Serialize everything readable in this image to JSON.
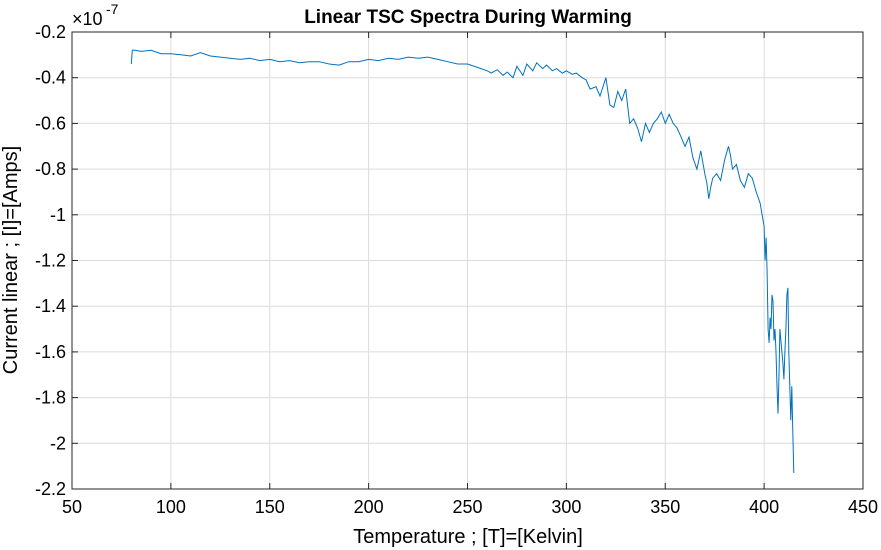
{
  "chart_data": {
    "type": "line",
    "title": "Linear TSC Spectra During Warming",
    "xlabel": "Temperature ; [T]=[Kelvin]",
    "ylabel": "Current linear ; [I]=[Amps]",
    "y_exponent_base": "×10",
    "y_exponent_power": "-7",
    "xlim": [
      50,
      450
    ],
    "ylim": [
      -2.2,
      -0.2
    ],
    "xticks": [
      50,
      100,
      150,
      200,
      250,
      300,
      350,
      400,
      450
    ],
    "xtick_labels": [
      "50",
      "100",
      "150",
      "200",
      "250",
      "300",
      "350",
      "400",
      "450"
    ],
    "yticks": [
      -2.2,
      -2,
      -1.8,
      -1.6,
      -1.4,
      -1.2,
      -1,
      -0.8,
      -0.6,
      -0.4,
      -0.2
    ],
    "ytick_labels": [
      "-2.2",
      "-2",
      "-1.8",
      "-1.6",
      "-1.4",
      "-1.2",
      "-1",
      "-0.8",
      "-0.6",
      "-0.4",
      "-0.2"
    ],
    "grid": true,
    "series": [
      {
        "color": "#0072BD",
        "x": [
          80,
          80.5,
          82,
          85,
          90,
          95,
          100,
          105,
          110,
          115,
          120,
          125,
          130,
          135,
          140,
          145,
          150,
          155,
          160,
          165,
          170,
          175,
          180,
          185,
          190,
          195,
          200,
          205,
          210,
          215,
          220,
          225,
          230,
          235,
          240,
          245,
          250,
          255,
          260,
          262,
          265,
          268,
          270,
          273,
          275,
          278,
          280,
          283,
          285,
          288,
          290,
          293,
          295,
          298,
          300,
          303,
          305,
          308,
          310,
          312,
          315,
          317,
          320,
          322,
          324,
          326,
          328,
          330,
          332,
          334,
          336,
          338,
          340,
          342,
          344,
          346,
          348,
          350,
          352,
          354,
          356,
          358,
          360,
          362,
          364,
          366,
          368,
          370,
          371,
          372,
          373,
          374,
          376,
          378,
          380,
          382,
          383,
          384,
          386,
          388,
          390,
          392,
          394,
          396,
          398,
          399,
          400,
          400.5,
          401,
          401.5,
          402,
          402.5,
          403,
          403.5,
          404,
          404.5,
          405,
          405.5,
          406,
          406.5,
          407,
          407.5,
          408,
          408.5,
          409,
          409.5,
          410,
          410.5,
          411,
          411.5,
          412,
          412.5,
          413,
          413.5,
          414,
          414.5,
          415
        ],
        "y": [
          -0.34,
          -0.28,
          -0.28,
          -0.285,
          -0.28,
          -0.295,
          -0.295,
          -0.3,
          -0.305,
          -0.29,
          -0.305,
          -0.31,
          -0.315,
          -0.32,
          -0.315,
          -0.325,
          -0.32,
          -0.33,
          -0.325,
          -0.335,
          -0.33,
          -0.33,
          -0.34,
          -0.345,
          -0.33,
          -0.33,
          -0.32,
          -0.325,
          -0.315,
          -0.32,
          -0.31,
          -0.315,
          -0.31,
          -0.32,
          -0.33,
          -0.34,
          -0.34,
          -0.355,
          -0.37,
          -0.38,
          -0.365,
          -0.39,
          -0.375,
          -0.4,
          -0.35,
          -0.39,
          -0.34,
          -0.37,
          -0.335,
          -0.36,
          -0.345,
          -0.37,
          -0.36,
          -0.38,
          -0.37,
          -0.385,
          -0.38,
          -0.4,
          -0.41,
          -0.45,
          -0.44,
          -0.48,
          -0.4,
          -0.52,
          -0.53,
          -0.46,
          -0.5,
          -0.45,
          -0.6,
          -0.58,
          -0.62,
          -0.68,
          -0.6,
          -0.64,
          -0.6,
          -0.58,
          -0.55,
          -0.6,
          -0.56,
          -0.6,
          -0.62,
          -0.66,
          -0.7,
          -0.66,
          -0.75,
          -0.8,
          -0.72,
          -0.82,
          -0.86,
          -0.93,
          -0.88,
          -0.84,
          -0.82,
          -0.85,
          -0.76,
          -0.7,
          -0.74,
          -0.8,
          -0.78,
          -0.85,
          -0.88,
          -0.82,
          -0.84,
          -0.9,
          -0.95,
          -1.0,
          -1.05,
          -1.2,
          -1.1,
          -1.25,
          -1.5,
          -1.56,
          -1.45,
          -1.5,
          -1.35,
          -1.38,
          -1.55,
          -1.5,
          -1.6,
          -1.75,
          -1.87,
          -1.7,
          -1.5,
          -1.55,
          -1.6,
          -1.65,
          -1.72,
          -1.6,
          -1.5,
          -1.35,
          -1.32,
          -1.6,
          -1.75,
          -1.9,
          -1.75,
          -1.95,
          -2.13
        ]
      }
    ]
  }
}
